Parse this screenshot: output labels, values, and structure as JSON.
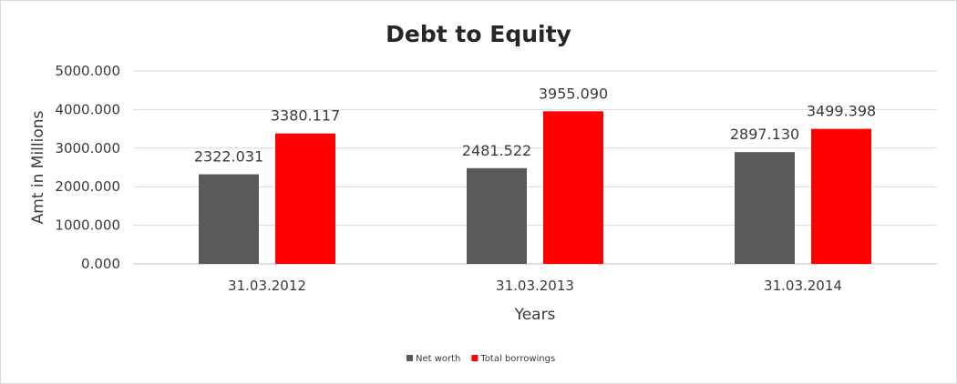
{
  "chart_data": {
    "type": "bar",
    "title": "Debt to Equity",
    "xlabel": "Years",
    "ylabel": "Amt in Millions",
    "categories": [
      "31.03.2012",
      "31.03.2013",
      "31.03.2014"
    ],
    "series": [
      {
        "name": "Net worth",
        "color": "#595959",
        "values": [
          2322.031,
          2481.522,
          2897.13
        ],
        "labels": [
          "2322.031",
          "2481.522",
          "2897.130"
        ]
      },
      {
        "name": "Total borrowings",
        "color": "#ff0000",
        "values": [
          3380.117,
          3955.09,
          3499.398
        ],
        "labels": [
          "3380.117",
          "3955.090",
          "3499.398"
        ]
      }
    ],
    "ylim": [
      0,
      5000
    ],
    "yticks": [
      "0.000",
      "1000.000",
      "2000.000",
      "3000.000",
      "4000.000",
      "5000.000"
    ],
    "grid": true,
    "legend": "bottom"
  }
}
